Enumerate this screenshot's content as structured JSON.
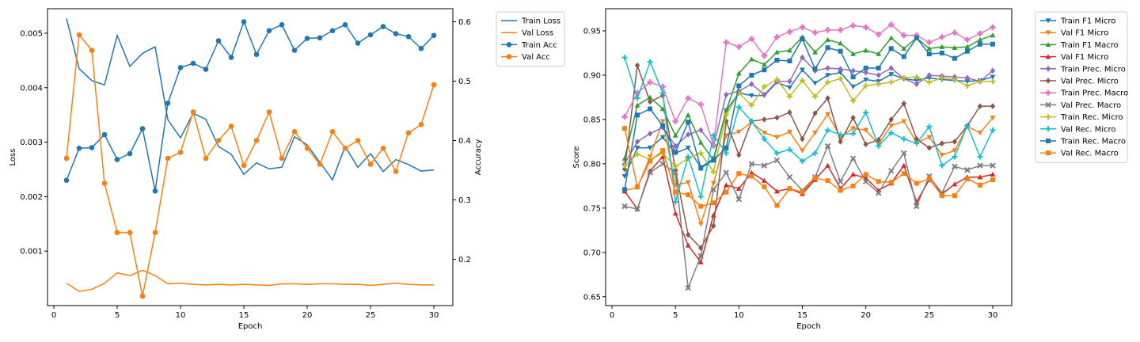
{
  "chart_data": [
    {
      "type": "line",
      "title": "",
      "xlabel": "Epoch",
      "ylabel": "Loss",
      "y2label": "Accuracy",
      "xlim": [
        -0.5,
        31.5
      ],
      "ylim": [
        0.0,
        0.00545
      ],
      "y2lim": [
        0.122,
        0.622
      ],
      "xticks": [
        0,
        5,
        10,
        15,
        20,
        25,
        30
      ],
      "yticks": [
        0.001,
        0.002,
        0.003,
        0.004,
        0.005
      ],
      "ytick_labels": [
        "0.001",
        "0.002",
        "0.003",
        "0.004",
        "0.005"
      ],
      "y2ticks": [
        0.2,
        0.3,
        0.4,
        0.5,
        0.6
      ],
      "y2tick_labels": [
        "0.2",
        "0.3",
        "0.4",
        "0.5",
        "0.6"
      ],
      "legend_position": "outside right, top",
      "x": [
        1,
        2,
        3,
        4,
        5,
        6,
        7,
        8,
        9,
        10,
        11,
        12,
        13,
        14,
        15,
        16,
        17,
        18,
        19,
        20,
        21,
        22,
        23,
        24,
        25,
        26,
        27,
        28,
        29,
        30
      ],
      "series": [
        {
          "name": "Train Loss",
          "axis": "left",
          "color": "#1f77b4",
          "marker": "none",
          "values": [
            0.00527,
            0.00435,
            0.00413,
            0.00405,
            0.00496,
            0.00439,
            0.00463,
            0.00475,
            0.00341,
            0.00308,
            0.00353,
            0.00342,
            0.00292,
            0.00278,
            0.00241,
            0.00262,
            0.00251,
            0.00254,
            0.0031,
            0.00295,
            0.00263,
            0.00231,
            0.00292,
            0.00254,
            0.00279,
            0.00246,
            0.00268,
            0.00259,
            0.00247,
            0.00249
          ]
        },
        {
          "name": "Val Loss",
          "axis": "left",
          "color": "#ff7f0e",
          "marker": "none",
          "values": [
            0.00041,
            0.00026,
            0.0003,
            0.00041,
            0.0006,
            0.00055,
            0.00065,
            0.00055,
            0.0004,
            0.00041,
            0.00039,
            0.00038,
            0.00039,
            0.00038,
            0.00039,
            0.00038,
            0.00037,
            0.0004,
            0.0004,
            0.00039,
            0.0004,
            0.0004,
            0.00039,
            0.00039,
            0.00037,
            0.00039,
            0.00041,
            0.00039,
            0.00038,
            0.00038
          ]
        },
        {
          "name": "Train Acc",
          "axis": "right",
          "color": "#1f77b4",
          "marker": "circle",
          "values": [
            0.333,
            0.387,
            0.388,
            0.41,
            0.368,
            0.378,
            0.42,
            0.315,
            0.463,
            0.523,
            0.53,
            0.52,
            0.568,
            0.54,
            0.6,
            0.545,
            0.585,
            0.595,
            0.552,
            0.572,
            0.573,
            0.585,
            0.595,
            0.564,
            0.578,
            0.592,
            0.58,
            0.575,
            0.555,
            0.577
          ]
        },
        {
          "name": "Val Acc",
          "axis": "right",
          "color": "#ff7f0e",
          "marker": "circle",
          "values": [
            0.37,
            0.578,
            0.552,
            0.328,
            0.245,
            0.245,
            0.138,
            0.245,
            0.37,
            0.38,
            0.448,
            0.37,
            0.4,
            0.424,
            0.358,
            0.4,
            0.448,
            0.37,
            0.415,
            0.387,
            0.36,
            0.415,
            0.387,
            0.4,
            0.36,
            0.387,
            0.348,
            0.413,
            0.427,
            0.494
          ]
        }
      ]
    },
    {
      "type": "line",
      "title": "",
      "xlabel": "Epoch",
      "ylabel": "Score",
      "xlim": [
        -0.5,
        31.5
      ],
      "ylim": [
        0.64,
        0.975
      ],
      "xticks": [
        0,
        5,
        10,
        15,
        20,
        25,
        30
      ],
      "yticks": [
        0.65,
        0.7,
        0.75,
        0.8,
        0.85,
        0.9,
        0.95
      ],
      "ytick_labels": [
        "0.65",
        "0.70",
        "0.75",
        "0.80",
        "0.85",
        "0.90",
        "0.95"
      ],
      "legend_position": "outside right, top",
      "x": [
        1,
        2,
        3,
        4,
        5,
        6,
        7,
        8,
        9,
        10,
        11,
        12,
        13,
        14,
        15,
        16,
        17,
        18,
        19,
        20,
        21,
        22,
        23,
        24,
        25,
        26,
        27,
        28,
        29,
        30
      ],
      "series": [
        {
          "name": "Train F1 Micro",
          "color": "#1f77b4",
          "marker": "tri_down",
          "values": [
            0.786,
            0.818,
            0.818,
            0.83,
            0.812,
            0.818,
            0.796,
            0.806,
            0.86,
            0.88,
            0.877,
            0.877,
            0.892,
            0.886,
            0.906,
            0.891,
            0.9,
            0.903,
            0.887,
            0.895,
            0.893,
            0.901,
            0.896,
            0.894,
            0.897,
            0.895,
            0.894,
            0.893,
            0.894,
            0.898
          ]
        },
        {
          "name": "Val F1 Micro",
          "color": "#ff7f0e",
          "marker": "tri_down",
          "values": [
            0.77,
            0.773,
            0.808,
            0.848,
            0.776,
            0.779,
            0.732,
            0.778,
            0.832,
            0.836,
            0.847,
            0.835,
            0.83,
            0.836,
            0.815,
            0.835,
            0.856,
            0.83,
            0.84,
            0.838,
            0.822,
            0.843,
            0.848,
            0.824,
            0.83,
            0.81,
            0.815,
            0.842,
            0.835,
            0.852
          ]
        },
        {
          "name": "Train F1 Macro",
          "color": "#2ca02c",
          "marker": "tri_up",
          "values": [
            0.806,
            0.866,
            0.875,
            0.862,
            0.832,
            0.855,
            0.824,
            0.804,
            0.86,
            0.902,
            0.918,
            0.912,
            0.926,
            0.928,
            0.943,
            0.926,
            0.94,
            0.936,
            0.924,
            0.928,
            0.924,
            0.942,
            0.93,
            0.942,
            0.93,
            0.932,
            0.931,
            0.932,
            0.94,
            0.945
          ]
        },
        {
          "name": "Val F1 Micro",
          "color": "#d62728",
          "marker": "tri_up",
          "values": [
            0.769,
            0.749,
            0.792,
            0.808,
            0.744,
            0.708,
            0.689,
            0.742,
            0.776,
            0.772,
            0.79,
            0.781,
            0.769,
            0.772,
            0.766,
            0.782,
            0.798,
            0.772,
            0.788,
            0.784,
            0.77,
            0.778,
            0.798,
            0.757,
            0.782,
            0.766,
            0.777,
            0.785,
            0.785,
            0.788
          ]
        },
        {
          "name": "Train Prec. Micro",
          "color": "#9467bd",
          "marker": "diamond",
          "values": [
            0.8,
            0.825,
            0.834,
            0.841,
            0.82,
            0.833,
            0.838,
            0.82,
            0.878,
            0.882,
            0.89,
            0.878,
            0.893,
            0.893,
            0.92,
            0.905,
            0.908,
            0.907,
            0.905,
            0.903,
            0.9,
            0.908,
            0.896,
            0.89,
            0.9,
            0.899,
            0.898,
            0.897,
            0.893,
            0.905
          ]
        },
        {
          "name": "Val Prec. Micro",
          "color": "#8c564b",
          "marker": "diamond",
          "values": [
            0.794,
            0.911,
            0.87,
            0.877,
            0.793,
            0.72,
            0.705,
            0.73,
            0.848,
            0.81,
            0.848,
            0.85,
            0.852,
            0.858,
            0.828,
            0.857,
            0.874,
            0.825,
            0.852,
            0.822,
            0.827,
            0.85,
            0.868,
            0.828,
            0.818,
            0.823,
            0.825,
            0.843,
            0.865,
            0.865
          ]
        },
        {
          "name": "Train Prec. Macro",
          "color": "#e377c2",
          "marker": "cross",
          "values": [
            0.853,
            0.88,
            0.892,
            0.887,
            0.848,
            0.874,
            0.867,
            0.821,
            0.937,
            0.932,
            0.941,
            0.922,
            0.943,
            0.949,
            0.954,
            0.948,
            0.951,
            0.951,
            0.956,
            0.954,
            0.946,
            0.957,
            0.945,
            0.945,
            0.937,
            0.943,
            0.948,
            0.94,
            0.947,
            0.954
          ]
        },
        {
          "name": "Val Prec. Macro",
          "color": "#7f7f7f",
          "marker": "x",
          "values": [
            0.752,
            0.749,
            0.79,
            0.8,
            0.79,
            0.66,
            0.696,
            0.771,
            0.79,
            0.76,
            0.8,
            0.798,
            0.804,
            0.785,
            0.77,
            0.785,
            0.82,
            0.78,
            0.806,
            0.78,
            0.767,
            0.792,
            0.812,
            0.752,
            0.786,
            0.767,
            0.797,
            0.793,
            0.798,
            0.798
          ]
        },
        {
          "name": "Train Rec. Micro",
          "color": "#bcbd22",
          "marker": "plus",
          "values": [
            0.798,
            0.811,
            0.805,
            0.812,
            0.797,
            0.806,
            0.812,
            0.791,
            0.855,
            0.88,
            0.866,
            0.887,
            0.895,
            0.876,
            0.894,
            0.876,
            0.892,
            0.896,
            0.871,
            0.888,
            0.89,
            0.892,
            0.897,
            0.898,
            0.892,
            0.897,
            0.895,
            0.888,
            0.893,
            0.893
          ]
        },
        {
          "name": "Val Rec. Micro",
          "color": "#17becf",
          "marker": "plus",
          "values": [
            0.92,
            0.874,
            0.915,
            0.88,
            0.757,
            0.808,
            0.763,
            0.832,
            0.812,
            0.864,
            0.848,
            0.828,
            0.812,
            0.816,
            0.803,
            0.812,
            0.838,
            0.833,
            0.834,
            0.858,
            0.82,
            0.835,
            0.828,
            0.823,
            0.842,
            0.798,
            0.808,
            0.843,
            0.808,
            0.838
          ]
        },
        {
          "name": "Train Rec. Macro",
          "color": "#1f77b4",
          "marker": "square",
          "values": [
            0.771,
            0.855,
            0.862,
            0.843,
            0.813,
            0.847,
            0.795,
            0.804,
            0.818,
            0.888,
            0.9,
            0.906,
            0.917,
            0.916,
            0.941,
            0.907,
            0.931,
            0.927,
            0.898,
            0.908,
            0.908,
            0.93,
            0.921,
            0.942,
            0.924,
            0.925,
            0.919,
            0.927,
            0.935,
            0.935
          ]
        },
        {
          "name": "Val Rec. Macro",
          "color": "#ff7f0e",
          "marker": "square",
          "values": [
            0.84,
            0.774,
            0.803,
            0.815,
            0.768,
            0.765,
            0.752,
            0.756,
            0.768,
            0.789,
            0.786,
            0.774,
            0.753,
            0.772,
            0.768,
            0.784,
            0.781,
            0.77,
            0.775,
            0.788,
            0.78,
            0.779,
            0.789,
            0.778,
            0.783,
            0.764,
            0.764,
            0.783,
            0.776,
            0.782
          ]
        }
      ]
    }
  ]
}
